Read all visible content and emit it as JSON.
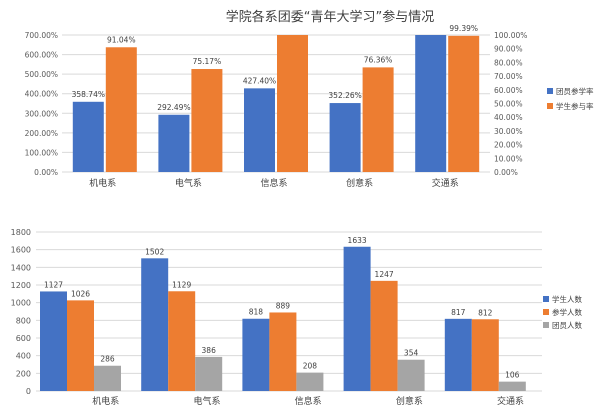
{
  "chart_data": [
    {
      "type": "bar",
      "title": "学院各系团委“青年大学习”参与情况",
      "categories": [
        "机电系",
        "电气系",
        "信息系",
        "创意系",
        "交通系"
      ],
      "left_axis": {
        "ylim": [
          0,
          700
        ],
        "ticks": [
          0,
          100,
          200,
          300,
          400,
          500,
          600,
          700
        ],
        "tick_labels": [
          "0.00%",
          "100.00%",
          "200.00%",
          "300.00%",
          "400.00%",
          "500.00%",
          "600.00%",
          "700.00%"
        ]
      },
      "right_axis": {
        "ylim": [
          0,
          100
        ],
        "ticks": [
          0,
          10,
          20,
          30,
          40,
          50,
          60,
          70,
          80,
          90,
          100
        ],
        "tick_labels": [
          "0.00%",
          "10.00%",
          "20.00%",
          "30.00%",
          "40.00%",
          "50.00%",
          "60.00%",
          "70.00%",
          "80.00%",
          "90.00%",
          "100.00%"
        ]
      },
      "series": [
        {
          "name": "团员参学率",
          "axis": "left",
          "color": "#4472c4",
          "values": [
            358.74,
            292.49,
            427.4,
            352.26,
            700
          ],
          "labels": [
            "358.74%",
            "292.49%",
            "427.40%",
            "352.26%",
            ""
          ]
        },
        {
          "name": "学生参与率",
          "axis": "right",
          "color": "#ed7d31",
          "values": [
            91.04,
            75.17,
            100,
            76.36,
            99.39
          ],
          "labels": [
            "91.04%",
            "75.17%",
            "",
            "76.36%",
            "99.39%"
          ]
        }
      ],
      "legend_position": "right",
      "grid": true
    },
    {
      "type": "bar",
      "title": "",
      "categories": [
        "机电系",
        "电气系",
        "信息系",
        "创意系",
        "交通系"
      ],
      "ylim": [
        0,
        1800
      ],
      "ticks": [
        0,
        200,
        400,
        600,
        800,
        1000,
        1200,
        1400,
        1600,
        1800
      ],
      "tick_labels": [
        "0",
        "200",
        "400",
        "600",
        "800",
        "1000",
        "1200",
        "1400",
        "1600",
        "1800"
      ],
      "series": [
        {
          "name": "学生人数",
          "color": "#4472c4",
          "values": [
            1127,
            1502,
            818,
            1633,
            817
          ],
          "labels": [
            "1127",
            "1502",
            "818",
            "1633",
            "817"
          ]
        },
        {
          "name": "参学人数",
          "color": "#ed7d31",
          "values": [
            1026,
            1129,
            889,
            1247,
            812
          ],
          "labels": [
            "1026",
            "1129",
            "889",
            "1247",
            "812"
          ]
        },
        {
          "name": "团员人数",
          "color": "#a5a5a5",
          "values": [
            286,
            386,
            208,
            354,
            106
          ],
          "labels": [
            "286",
            "386",
            "208",
            "354",
            "106"
          ]
        }
      ],
      "legend_position": "right",
      "grid": true
    }
  ]
}
